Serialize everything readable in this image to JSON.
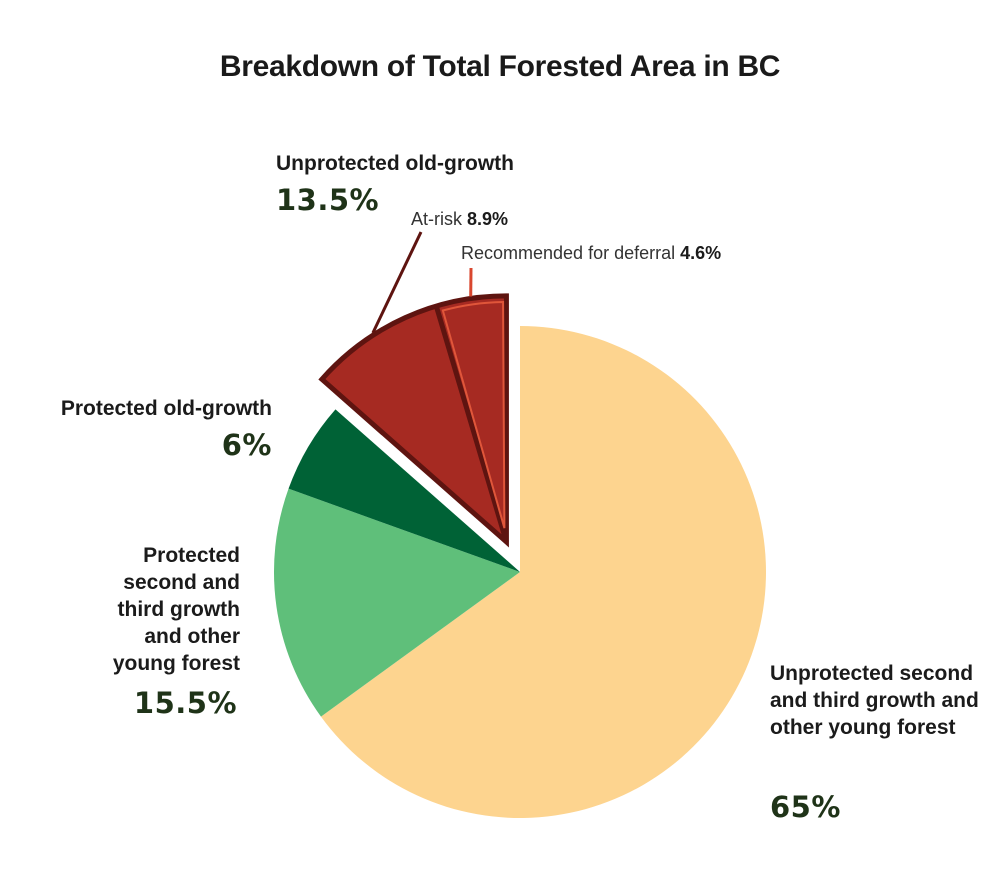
{
  "chart_data": {
    "type": "pie",
    "title": "Breakdown of Total Forested Area in BC",
    "slices": [
      {
        "label": "Unprotected second and third growth and other young forest",
        "value_label": "65%",
        "value": 65,
        "color": "#fdd48f"
      },
      {
        "label": "Protected second and third growth and other young forest",
        "value_label": "15.5%",
        "value": 15.5,
        "color": "#5fbf7a"
      },
      {
        "label": "Protected old-growth",
        "value_label": "6%",
        "value": 6,
        "color": "#006236"
      },
      {
        "label": "Unprotected old-growth",
        "value_label": "13.5%",
        "value": 13.5,
        "color": "#a62a22",
        "exploded": true,
        "sub_slices": [
          {
            "label": "At-risk",
            "value_label": "8.9%",
            "value": 8.9
          },
          {
            "label": "Recommended for deferral",
            "value_label": "4.6%",
            "value": 4.6
          }
        ]
      }
    ]
  }
}
